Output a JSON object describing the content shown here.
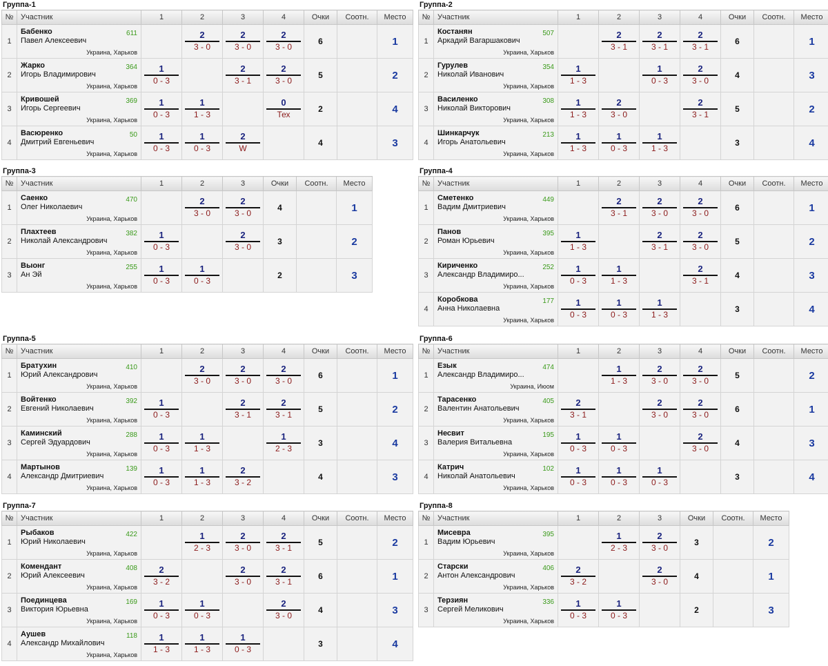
{
  "headers": {
    "num": "№",
    "participant": "Участник",
    "points": "Очки",
    "ratio": "Соотн.",
    "place": "Место"
  },
  "groups": [
    {
      "title": "Группа-1",
      "cols": [
        "1",
        "2",
        "3",
        "4"
      ],
      "rows": [
        {
          "num": "1",
          "name": "Бабенко",
          "full": "Павел Алексеевич",
          "rating": "611",
          "loc": "Украина, Харьков",
          "results": [
            null,
            {
              "s": "2",
              "d": "3 - 0"
            },
            {
              "s": "2",
              "d": "3 - 0"
            },
            {
              "s": "2",
              "d": "3 - 0"
            }
          ],
          "points": "6",
          "place": "1"
        },
        {
          "num": "2",
          "name": "Жарко",
          "full": "Игорь Владимирович",
          "rating": "364",
          "loc": "Украина, Харьков",
          "results": [
            {
              "s": "1",
              "d": "0 - 3"
            },
            null,
            {
              "s": "2",
              "d": "3 - 1"
            },
            {
              "s": "2",
              "d": "3 - 0"
            }
          ],
          "points": "5",
          "place": "2"
        },
        {
          "num": "3",
          "name": "Кривошей",
          "full": "Игорь Сергеевич",
          "rating": "369",
          "loc": "Украина, Харьков",
          "results": [
            {
              "s": "1",
              "d": "0 - 3"
            },
            {
              "s": "1",
              "d": "1 - 3"
            },
            null,
            {
              "s": "0",
              "d": "Тех"
            }
          ],
          "points": "2",
          "place": "4"
        },
        {
          "num": "4",
          "name": "Васюренко",
          "full": "Дмитрий Евгеньевич",
          "rating": "50",
          "loc": "Украина, Харьков",
          "results": [
            {
              "s": "1",
              "d": "0 - 3"
            },
            {
              "s": "1",
              "d": "0 - 3"
            },
            {
              "s": "2",
              "d": "W"
            },
            null
          ],
          "points": "4",
          "place": "3"
        }
      ]
    },
    {
      "title": "Группа-2",
      "cols": [
        "1",
        "2",
        "3",
        "4"
      ],
      "rows": [
        {
          "num": "1",
          "name": "Костанян",
          "full": "Аркадий Вагаршакович",
          "rating": "507",
          "loc": "Украина, Харьков",
          "results": [
            null,
            {
              "s": "2",
              "d": "3 - 1"
            },
            {
              "s": "2",
              "d": "3 - 1"
            },
            {
              "s": "2",
              "d": "3 - 1"
            }
          ],
          "points": "6",
          "place": "1"
        },
        {
          "num": "2",
          "name": "Гурулев",
          "full": "Николай Иванович",
          "rating": "354",
          "loc": "Украина, Харьков",
          "results": [
            {
              "s": "1",
              "d": "1 - 3"
            },
            null,
            {
              "s": "1",
              "d": "0 - 3"
            },
            {
              "s": "2",
              "d": "3 - 0"
            }
          ],
          "points": "4",
          "place": "3"
        },
        {
          "num": "3",
          "name": "Василенко",
          "full": "Николай Викторович",
          "rating": "308",
          "loc": "Украина, Харьков",
          "results": [
            {
              "s": "1",
              "d": "1 - 3"
            },
            {
              "s": "2",
              "d": "3 - 0"
            },
            null,
            {
              "s": "2",
              "d": "3 - 1"
            }
          ],
          "points": "5",
          "place": "2"
        },
        {
          "num": "4",
          "name": "Шинкарчук",
          "full": "Игорь Анатольевич",
          "rating": "213",
          "loc": "Украина, Харьков",
          "results": [
            {
              "s": "1",
              "d": "1 - 3"
            },
            {
              "s": "1",
              "d": "0 - 3"
            },
            {
              "s": "1",
              "d": "1 - 3"
            },
            null
          ],
          "points": "3",
          "place": "4"
        }
      ]
    },
    {
      "title": "Группа-3",
      "cols": [
        "1",
        "2",
        "3"
      ],
      "rows": [
        {
          "num": "1",
          "name": "Саенко",
          "full": "Олег Николаевич",
          "rating": "470",
          "loc": "Украина, Харьков",
          "results": [
            null,
            {
              "s": "2",
              "d": "3 - 0"
            },
            {
              "s": "2",
              "d": "3 - 0"
            }
          ],
          "points": "4",
          "place": "1"
        },
        {
          "num": "2",
          "name": "Плахтеев",
          "full": "Николай Александрович",
          "rating": "382",
          "loc": "Украина, Харьков",
          "results": [
            {
              "s": "1",
              "d": "0 - 3"
            },
            null,
            {
              "s": "2",
              "d": "3 - 0"
            }
          ],
          "points": "3",
          "place": "2"
        },
        {
          "num": "3",
          "name": "Выонг",
          "full": "Ан Эй",
          "rating": "255",
          "loc": "Украина, Харьков",
          "results": [
            {
              "s": "1",
              "d": "0 - 3"
            },
            {
              "s": "1",
              "d": "0 - 3"
            },
            null
          ],
          "points": "2",
          "place": "3"
        }
      ]
    },
    {
      "title": "Группа-4",
      "cols": [
        "1",
        "2",
        "3",
        "4"
      ],
      "rows": [
        {
          "num": "1",
          "name": "Сметенко",
          "full": "Вадим Дмитриевич",
          "rating": "449",
          "loc": "Украина, Харьков",
          "results": [
            null,
            {
              "s": "2",
              "d": "3 - 1"
            },
            {
              "s": "2",
              "d": "3 - 0"
            },
            {
              "s": "2",
              "d": "3 - 0"
            }
          ],
          "points": "6",
          "place": "1"
        },
        {
          "num": "2",
          "name": "Панов",
          "full": "Роман Юрьевич",
          "rating": "395",
          "loc": "Украина, Харьков",
          "results": [
            {
              "s": "1",
              "d": "1 - 3"
            },
            null,
            {
              "s": "2",
              "d": "3 - 1"
            },
            {
              "s": "2",
              "d": "3 - 0"
            }
          ],
          "points": "5",
          "place": "2"
        },
        {
          "num": "3",
          "name": "Кириченко",
          "full": "Александр Владимиро...",
          "rating": "252",
          "loc": "Украина, Харьков",
          "results": [
            {
              "s": "1",
              "d": "0 - 3"
            },
            {
              "s": "1",
              "d": "1 - 3"
            },
            null,
            {
              "s": "2",
              "d": "3 - 1"
            }
          ],
          "points": "4",
          "place": "3"
        },
        {
          "num": "4",
          "name": "Коробкова",
          "full": "Анна Николаевна",
          "rating": "177",
          "loc": "Украина, Харьков",
          "results": [
            {
              "s": "1",
              "d": "0 - 3"
            },
            {
              "s": "1",
              "d": "0 - 3"
            },
            {
              "s": "1",
              "d": "1 - 3"
            },
            null
          ],
          "points": "3",
          "place": "4"
        }
      ]
    },
    {
      "title": "Группа-5",
      "cols": [
        "1",
        "2",
        "3",
        "4"
      ],
      "rows": [
        {
          "num": "1",
          "name": "Братухин",
          "full": "Юрий Александрович",
          "rating": "410",
          "loc": "Украина, Харьков",
          "results": [
            null,
            {
              "s": "2",
              "d": "3 - 0"
            },
            {
              "s": "2",
              "d": "3 - 0"
            },
            {
              "s": "2",
              "d": "3 - 0"
            }
          ],
          "points": "6",
          "place": "1"
        },
        {
          "num": "2",
          "name": "Войтенко",
          "full": "Евгений Николаевич",
          "rating": "392",
          "loc": "Украина, Харьков",
          "results": [
            {
              "s": "1",
              "d": "0 - 3"
            },
            null,
            {
              "s": "2",
              "d": "3 - 1"
            },
            {
              "s": "2",
              "d": "3 - 1"
            }
          ],
          "points": "5",
          "place": "2"
        },
        {
          "num": "3",
          "name": "Каминский",
          "full": "Сергей Эдуардович",
          "rating": "288",
          "loc": "Украина, Харьков",
          "results": [
            {
              "s": "1",
              "d": "0 - 3"
            },
            {
              "s": "1",
              "d": "1 - 3"
            },
            null,
            {
              "s": "1",
              "d": "2 - 3"
            }
          ],
          "points": "3",
          "place": "4"
        },
        {
          "num": "4",
          "name": "Мартынов",
          "full": "Александр Дмитриевич",
          "rating": "139",
          "loc": "Украина, Харьков",
          "results": [
            {
              "s": "1",
              "d": "0 - 3"
            },
            {
              "s": "1",
              "d": "1 - 3"
            },
            {
              "s": "2",
              "d": "3 - 2"
            },
            null
          ],
          "points": "4",
          "place": "3"
        }
      ]
    },
    {
      "title": "Группа-6",
      "cols": [
        "1",
        "2",
        "3",
        "4"
      ],
      "rows": [
        {
          "num": "1",
          "name": "Езык",
          "full": "Александр Владимиро...",
          "rating": "474",
          "loc": "Украина, Июом",
          "results": [
            null,
            {
              "s": "1",
              "d": "1 - 3"
            },
            {
              "s": "2",
              "d": "3 - 0"
            },
            {
              "s": "2",
              "d": "3 - 0"
            }
          ],
          "points": "5",
          "place": "2"
        },
        {
          "num": "2",
          "name": "Тарасенко",
          "full": "Валентин Анатольевич",
          "rating": "405",
          "loc": "Украина, Харьков",
          "results": [
            {
              "s": "2",
              "d": "3 - 1"
            },
            null,
            {
              "s": "2",
              "d": "3 - 0"
            },
            {
              "s": "2",
              "d": "3 - 0"
            }
          ],
          "points": "6",
          "place": "1"
        },
        {
          "num": "3",
          "name": "Несвит",
          "full": "Валерия Витальевна",
          "rating": "195",
          "loc": "Украина, Харьков",
          "results": [
            {
              "s": "1",
              "d": "0 - 3"
            },
            {
              "s": "1",
              "d": "0 - 3"
            },
            null,
            {
              "s": "2",
              "d": "3 - 0"
            }
          ],
          "points": "4",
          "place": "3"
        },
        {
          "num": "4",
          "name": "Катрич",
          "full": "Николай Анатольевич",
          "rating": "102",
          "loc": "Украина, Харьков",
          "results": [
            {
              "s": "1",
              "d": "0 - 3"
            },
            {
              "s": "1",
              "d": "0 - 3"
            },
            {
              "s": "1",
              "d": "0 - 3"
            },
            null
          ],
          "points": "3",
          "place": "4"
        }
      ]
    },
    {
      "title": "Группа-7",
      "cols": [
        "1",
        "2",
        "3",
        "4"
      ],
      "rows": [
        {
          "num": "1",
          "name": "Рыбаков",
          "full": "Юрий Николаевич",
          "rating": "422",
          "loc": "Украина, Харьков",
          "results": [
            null,
            {
              "s": "1",
              "d": "2 - 3"
            },
            {
              "s": "2",
              "d": "3 - 0"
            },
            {
              "s": "2",
              "d": "3 - 1"
            }
          ],
          "points": "5",
          "place": "2"
        },
        {
          "num": "2",
          "name": "Комендант",
          "full": "Юрий Алексеевич",
          "rating": "408",
          "loc": "Украина, Харьков",
          "results": [
            {
              "s": "2",
              "d": "3 - 2"
            },
            null,
            {
              "s": "2",
              "d": "3 - 0"
            },
            {
              "s": "2",
              "d": "3 - 1"
            }
          ],
          "points": "6",
          "place": "1"
        },
        {
          "num": "3",
          "name": "Поединцева",
          "full": "Виктория Юрьевна",
          "rating": "169",
          "loc": "Украина, Харьков",
          "results": [
            {
              "s": "1",
              "d": "0 - 3"
            },
            {
              "s": "1",
              "d": "0 - 3"
            },
            null,
            {
              "s": "2",
              "d": "3 - 0"
            }
          ],
          "points": "4",
          "place": "3"
        },
        {
          "num": "4",
          "name": "Аушев",
          "full": "Александр Михайлович",
          "rating": "118",
          "loc": "Украина, Харьков",
          "results": [
            {
              "s": "1",
              "d": "1 - 3"
            },
            {
              "s": "1",
              "d": "1 - 3"
            },
            {
              "s": "1",
              "d": "0 - 3"
            },
            null
          ],
          "points": "3",
          "place": "4"
        }
      ]
    },
    {
      "title": "Группа-8",
      "cols": [
        "1",
        "2",
        "3"
      ],
      "rows": [
        {
          "num": "1",
          "name": "Мисевра",
          "full": "Вадим Юрьевич",
          "rating": "395",
          "loc": "Украина, Харьков",
          "results": [
            null,
            {
              "s": "1",
              "d": "2 - 3"
            },
            {
              "s": "2",
              "d": "3 - 0"
            }
          ],
          "points": "3",
          "place": "2"
        },
        {
          "num": "2",
          "name": "Старски",
          "full": "Антон Александрович",
          "rating": "406",
          "loc": "Украина, Харьков",
          "results": [
            {
              "s": "2",
              "d": "3 - 2"
            },
            null,
            {
              "s": "2",
              "d": "3 - 0"
            }
          ],
          "points": "4",
          "place": "1"
        },
        {
          "num": "3",
          "name": "Терзиян",
          "full": "Сергей Меликович",
          "rating": "336",
          "loc": "Украина, Харьков",
          "results": [
            {
              "s": "1",
              "d": "0 - 3"
            },
            {
              "s": "1",
              "d": "0 - 3"
            },
            null
          ],
          "points": "2",
          "place": "3"
        }
      ]
    }
  ]
}
